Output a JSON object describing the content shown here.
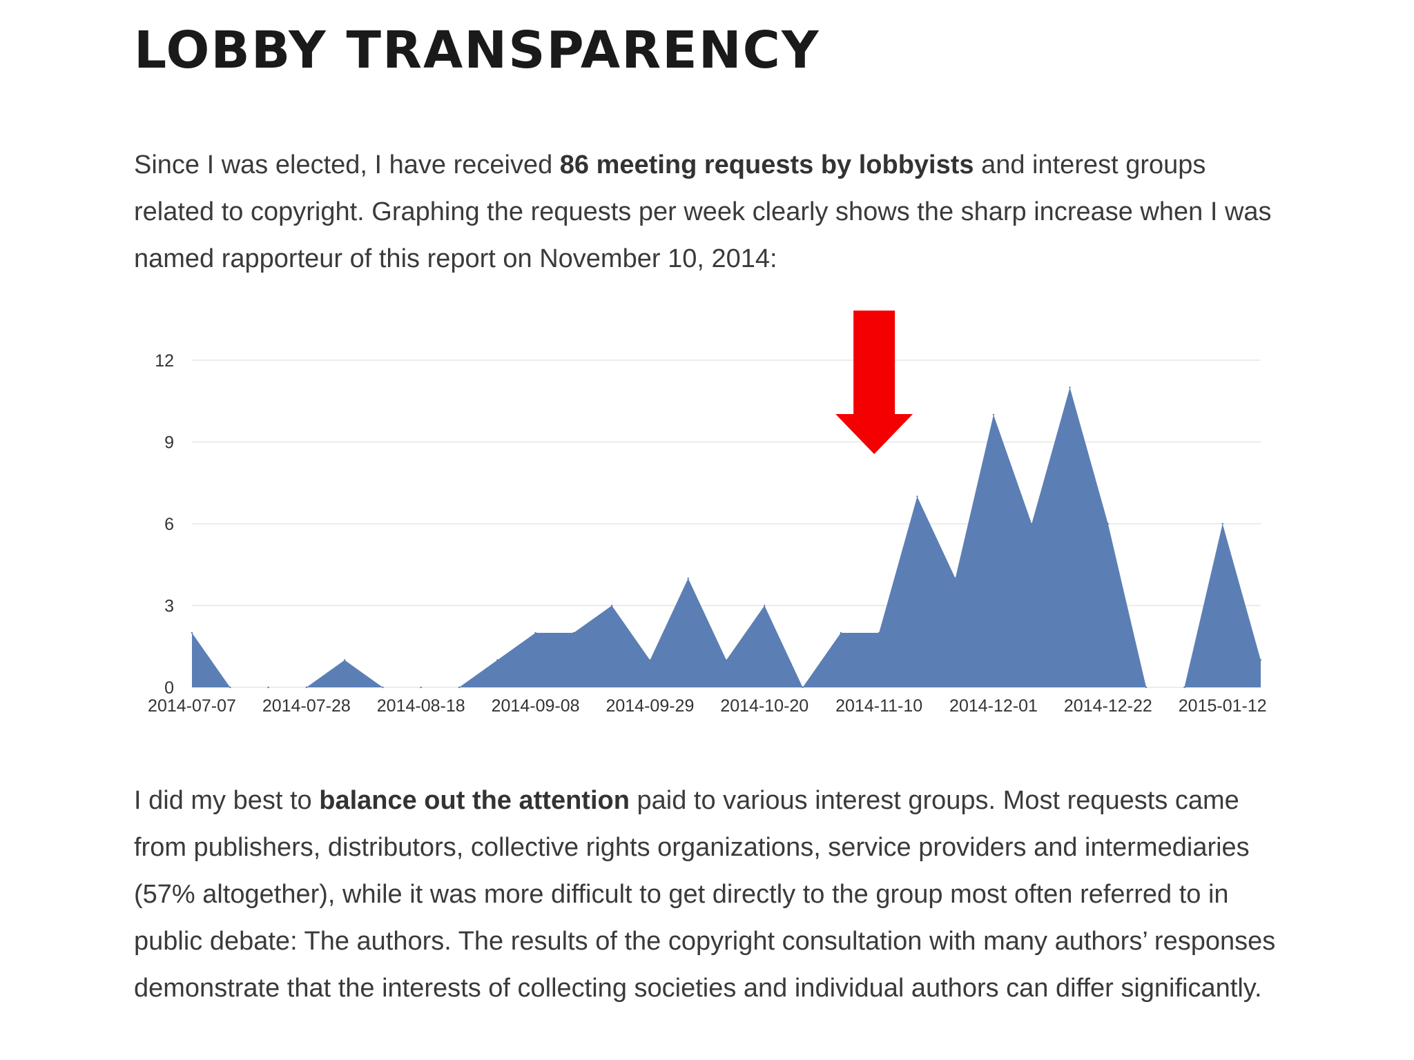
{
  "page": {
    "title": "LOBBY TRANSPARENCY"
  },
  "intro": {
    "before": "Since I was elected, I have received ",
    "bold": "86 meeting requests by lobbyists",
    "after": " and interest groups related to copyright. Graphing the requests per week clearly shows the sharp increase when I was named rapporteur of this report on November 10, 2014:"
  },
  "outro": {
    "before": "I did my best to ",
    "bold": "balance out the attention",
    "after": " paid to various interest groups. Most requests came from publishers, distributors, collective rights organizations, service providers and intermediaries (57% altogether), while it was more difficult to get directly to the group most often referred to in public debate: The authors. The results of the copyright consultation with many authors’ responses demonstrate that the interests of collecting societies and individual authors can differ significantly."
  },
  "chart_data": {
    "type": "area",
    "title": "",
    "xlabel": "",
    "ylabel": "",
    "x": [
      "2014-07-07",
      "2014-07-14",
      "2014-07-21",
      "2014-07-28",
      "2014-08-04",
      "2014-08-11",
      "2014-08-18",
      "2014-08-25",
      "2014-09-01",
      "2014-09-08",
      "2014-09-15",
      "2014-09-22",
      "2014-09-29",
      "2014-10-06",
      "2014-10-13",
      "2014-10-20",
      "2014-10-27",
      "2014-11-03",
      "2014-11-10",
      "2014-11-17",
      "2014-11-24",
      "2014-12-01",
      "2014-12-08",
      "2014-12-15",
      "2014-12-22",
      "2014-12-29",
      "2015-01-05",
      "2015-01-12",
      "2015-01-19"
    ],
    "series": [
      {
        "values": [
          2,
          0,
          0,
          0,
          1,
          0,
          0,
          0,
          1,
          2,
          2,
          3,
          1,
          4,
          1,
          3,
          0,
          2,
          2,
          7,
          4,
          10,
          6,
          11,
          6,
          0,
          0,
          6,
          1
        ],
        "color": "#5b7fb5"
      }
    ],
    "x_tick_labels": [
      "2014-07-07",
      "2014-07-28",
      "2014-08-18",
      "2014-09-08",
      "2014-09-29",
      "2014-10-20",
      "2014-11-10",
      "2014-12-01",
      "2014-12-22",
      "2015-01-12"
    ],
    "y_ticks": [
      0,
      3,
      6,
      9,
      12
    ],
    "ylim": [
      0,
      12
    ],
    "grid": true,
    "legend": "none",
    "annotation": {
      "shape": "arrow-down",
      "color": "#f50000",
      "points_to": "2014-11-10"
    },
    "gridline_color": "#e6e6e6"
  }
}
